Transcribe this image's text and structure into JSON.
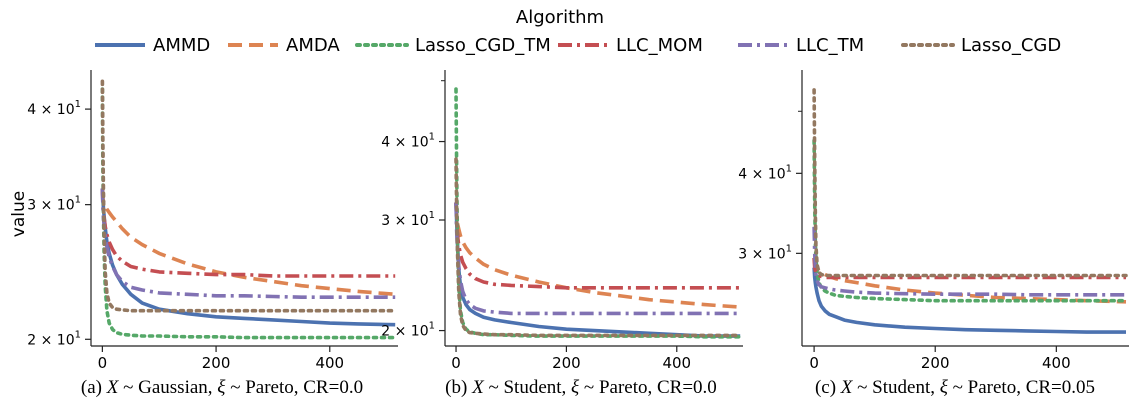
{
  "figure": {
    "legend_title": "Algorithm",
    "ylabel": "value"
  },
  "legend": [
    {
      "name": "AMMD",
      "color": "#4c72b0",
      "dash": "solid"
    },
    {
      "name": "AMDA",
      "color": "#dd8452",
      "dash": "dashed"
    },
    {
      "name": "Lasso_CGD_TM",
      "color": "#55a868",
      "dash": "dotted"
    },
    {
      "name": "LLC_MOM",
      "color": "#c44e52",
      "dash": "dashdot"
    },
    {
      "name": "LLC_TM",
      "color": "#8172b3",
      "dash": "dashdot"
    },
    {
      "name": "Lasso_CGD",
      "color": "#937860",
      "dash": "dotted"
    }
  ],
  "chart_data": [
    {
      "type": "line",
      "caption": {
        "prefix": "(a) ",
        "var": "X",
        "mid1": " ~ Gaussian, ",
        "xi": "ξ",
        "mid2": " ~ Pareto, CR=0.0"
      },
      "xlabel": "",
      "ylabel": "value",
      "xlim": [
        -20,
        520
      ],
      "ylim": [
        19.6,
        45
      ],
      "yscale": "log",
      "xticks": [
        0,
        200,
        400
      ],
      "yticks": [
        {
          "value": 20,
          "label": "2 × 10^1"
        },
        {
          "value": 30,
          "label": "3 × 10^1"
        },
        {
          "value": 40,
          "label": "4 × 10^1"
        }
      ],
      "x": [
        0,
        1,
        2,
        3,
        5,
        8,
        12,
        18,
        25,
        35,
        50,
        70,
        100,
        150,
        200,
        250,
        300,
        350,
        400,
        450,
        515
      ],
      "series": [
        {
          "name": "AMMD",
          "values": [
            31.5,
            30.5,
            29.6,
            29.0,
            28.0,
            26.8,
            25.9,
            25.0,
            24.3,
            23.6,
            22.9,
            22.3,
            21.9,
            21.6,
            21.4,
            21.3,
            21.2,
            21.1,
            21.0,
            20.95,
            20.9
          ]
        },
        {
          "name": "AMDA",
          "values": [
            31.5,
            30.6,
            30.3,
            30.1,
            29.9,
            29.6,
            29.3,
            28.9,
            28.5,
            27.9,
            27.2,
            26.6,
            25.9,
            25.1,
            24.5,
            24.1,
            23.8,
            23.5,
            23.3,
            23.1,
            22.9
          ]
        },
        {
          "name": "Lasso_CGD_TM",
          "values": [
            42.5,
            33.0,
            29.0,
            26.0,
            23.5,
            21.8,
            21.0,
            20.6,
            20.4,
            20.3,
            20.25,
            20.2,
            20.2,
            20.15,
            20.15,
            20.1,
            20.1,
            20.1,
            20.1,
            20.1,
            20.1
          ]
        },
        {
          "name": "LLC_MOM",
          "values": [
            31.5,
            30.0,
            29.2,
            28.8,
            28.1,
            27.4,
            26.8,
            26.2,
            25.7,
            25.3,
            24.9,
            24.7,
            24.5,
            24.4,
            24.3,
            24.3,
            24.2,
            24.2,
            24.2,
            24.2,
            24.2
          ]
        },
        {
          "name": "LLC_TM",
          "values": [
            31.5,
            29.8,
            28.8,
            28.2,
            27.3,
            26.4,
            25.6,
            24.9,
            24.3,
            23.8,
            23.4,
            23.2,
            23.0,
            22.9,
            22.8,
            22.8,
            22.75,
            22.7,
            22.7,
            22.7,
            22.7
          ]
        },
        {
          "name": "Lasso_CGD",
          "values": [
            43.5,
            36.0,
            31.0,
            27.5,
            24.5,
            23.0,
            22.3,
            22.0,
            21.9,
            21.85,
            21.8,
            21.8,
            21.8,
            21.8,
            21.8,
            21.8,
            21.8,
            21.8,
            21.8,
            21.8,
            21.8
          ]
        }
      ]
    },
    {
      "type": "line",
      "caption": {
        "prefix": "(b) ",
        "var": "X",
        "mid1": " ~ Student, ",
        "xi": "ξ",
        "mid2": " ~ Pareto, CR=0.0"
      },
      "xlabel": "",
      "ylabel": "",
      "xlim": [
        -20,
        520
      ],
      "ylim": [
        18.9,
        52
      ],
      "yscale": "log",
      "xticks": [
        0,
        200,
        400
      ],
      "yticks": [
        {
          "value": 20,
          "label": "2 × 10^1"
        },
        {
          "value": 30,
          "label": "3 × 10^1"
        },
        {
          "value": 40,
          "label": "4 × 10^1"
        }
      ],
      "x": [
        0,
        1,
        2,
        3,
        5,
        8,
        12,
        18,
        25,
        35,
        50,
        70,
        100,
        150,
        200,
        250,
        300,
        350,
        400,
        450,
        515
      ],
      "series": [
        {
          "name": "AMMD",
          "values": [
            32.0,
            30.0,
            28.5,
            27.0,
            25.0,
            23.5,
            22.6,
            22.0,
            21.6,
            21.3,
            21.0,
            20.8,
            20.6,
            20.3,
            20.1,
            20.0,
            19.9,
            19.8,
            19.7,
            19.6,
            19.6
          ]
        },
        {
          "name": "AMDA",
          "values": [
            32.0,
            30.5,
            30.0,
            29.5,
            29.0,
            28.3,
            27.7,
            27.1,
            26.6,
            26.1,
            25.5,
            25.0,
            24.5,
            23.9,
            23.4,
            23.0,
            22.7,
            22.4,
            22.2,
            22.0,
            21.8
          ]
        },
        {
          "name": "Lasso_CGD_TM",
          "values": [
            48.5,
            37.0,
            31.0,
            27.0,
            23.5,
            21.5,
            20.6,
            20.1,
            19.9,
            19.8,
            19.7,
            19.7,
            19.65,
            19.6,
            19.6,
            19.6,
            19.6,
            19.6,
            19.6,
            19.55,
            19.55
          ]
        },
        {
          "name": "LLC_MOM",
          "values": [
            32.0,
            29.8,
            28.8,
            28.2,
            27.3,
            26.4,
            25.7,
            25.1,
            24.6,
            24.2,
            23.9,
            23.7,
            23.6,
            23.5,
            23.4,
            23.4,
            23.4,
            23.4,
            23.4,
            23.4,
            23.4
          ]
        },
        {
          "name": "LLC_TM",
          "values": [
            32.0,
            29.0,
            27.6,
            26.7,
            25.3,
            24.0,
            23.1,
            22.4,
            22.0,
            21.7,
            21.5,
            21.4,
            21.3,
            21.3,
            21.3,
            21.3,
            21.3,
            21.3,
            21.3,
            21.3,
            21.3
          ]
        },
        {
          "name": "Lasso_CGD",
          "values": [
            37.5,
            32.0,
            28.5,
            26.0,
            23.0,
            21.2,
            20.4,
            20.0,
            19.85,
            19.8,
            19.75,
            19.7,
            19.7,
            19.65,
            19.65,
            19.65,
            19.65,
            19.65,
            19.65,
            19.65,
            19.65
          ]
        }
      ]
    },
    {
      "type": "line",
      "caption": {
        "prefix": "(c) ",
        "var": "X",
        "mid1": " ~ Student, ",
        "xi": "ξ",
        "mid2": " ~ Pareto, CR=0.05"
      },
      "xlabel": "",
      "ylabel": "",
      "xlim": [
        -20,
        520
      ],
      "ylim": [
        21.5,
        58
      ],
      "yscale": "log",
      "xticks": [
        0,
        200,
        400
      ],
      "yticks": [
        {
          "value": 30,
          "label": "3 × 10^1"
        },
        {
          "value": 40,
          "label": "4 × 10^1"
        }
      ],
      "x": [
        0,
        1,
        2,
        3,
        5,
        8,
        12,
        18,
        25,
        35,
        50,
        70,
        100,
        150,
        200,
        250,
        300,
        350,
        400,
        450,
        515
      ],
      "series": [
        {
          "name": "AMMD",
          "values": [
            28.5,
            27.5,
            27.0,
            26.6,
            26.0,
            25.3,
            24.8,
            24.4,
            24.1,
            23.9,
            23.6,
            23.4,
            23.2,
            23.0,
            22.9,
            22.8,
            22.75,
            22.7,
            22.65,
            22.6,
            22.6
          ]
        },
        {
          "name": "AMDA",
          "values": [
            29.5,
            29.0,
            28.8,
            28.6,
            28.4,
            28.2,
            28.0,
            27.8,
            27.6,
            27.4,
            27.2,
            27.0,
            26.7,
            26.3,
            26.0,
            25.8,
            25.6,
            25.5,
            25.4,
            25.3,
            25.2
          ]
        },
        {
          "name": "Lasso_CGD_TM",
          "values": [
            45.0,
            36.0,
            31.5,
            29.5,
            28.0,
            27.0,
            26.5,
            26.2,
            26.0,
            25.8,
            25.7,
            25.6,
            25.5,
            25.4,
            25.3,
            25.3,
            25.3,
            25.3,
            25.3,
            25.3,
            25.3
          ]
        },
        {
          "name": "LLC_MOM",
          "values": [
            29.5,
            28.5,
            28.2,
            28.0,
            27.8,
            27.7,
            27.6,
            27.5,
            27.5,
            27.5,
            27.5,
            27.5,
            27.5,
            27.5,
            27.5,
            27.5,
            27.5,
            27.5,
            27.5,
            27.5,
            27.5
          ]
        },
        {
          "name": "LLC_TM",
          "values": [
            33.0,
            30.0,
            28.5,
            27.8,
            27.2,
            26.8,
            26.6,
            26.5,
            26.4,
            26.3,
            26.2,
            26.1,
            26.0,
            25.95,
            25.9,
            25.9,
            25.9,
            25.85,
            25.85,
            25.85,
            25.85
          ]
        },
        {
          "name": "Lasso_CGD",
          "values": [
            54.0,
            42.0,
            35.0,
            31.0,
            28.8,
            28.0,
            27.8,
            27.7,
            27.7,
            27.7,
            27.7,
            27.7,
            27.7,
            27.7,
            27.7,
            27.7,
            27.7,
            27.7,
            27.7,
            27.7,
            27.7
          ]
        }
      ]
    }
  ]
}
